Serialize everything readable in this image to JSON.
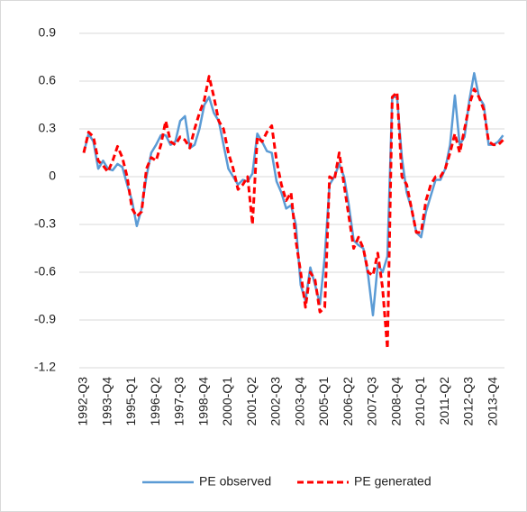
{
  "chart_data": {
    "type": "line",
    "categories": [
      "1992-Q3",
      null,
      null,
      null,
      null,
      "1993-Q4",
      null,
      null,
      null,
      null,
      "1995-Q1",
      null,
      null,
      null,
      null,
      "1996-Q2",
      null,
      null,
      null,
      null,
      "1997-Q3",
      null,
      null,
      null,
      null,
      "1998-Q4",
      null,
      null,
      null,
      null,
      "2000-Q1",
      null,
      null,
      null,
      null,
      "2001-Q2",
      null,
      null,
      null,
      null,
      "2002-Q3",
      null,
      null,
      null,
      null,
      "2003-Q4",
      null,
      null,
      null,
      null,
      "2005-Q1",
      null,
      null,
      null,
      null,
      "2006-Q2",
      null,
      null,
      null,
      null,
      "2007-Q3",
      null,
      null,
      null,
      null,
      "2008-Q4",
      null,
      null,
      null,
      null,
      "2010-Q1",
      null,
      null,
      null,
      null,
      "2011-Q2",
      null,
      null,
      null,
      null,
      "2012-Q3",
      null,
      null,
      null,
      null,
      "2013-Q4",
      null,
      null
    ],
    "series": [
      {
        "name": "PE observed",
        "color": "#5b9bd5",
        "line_style": "solid",
        "values": [
          0.15,
          0.27,
          0.22,
          0.05,
          0.1,
          0.05,
          0.04,
          0.08,
          0.06,
          -0.05,
          -0.15,
          -0.31,
          -0.2,
          0.0,
          0.15,
          0.2,
          0.26,
          0.26,
          0.2,
          0.22,
          0.35,
          0.38,
          0.18,
          0.2,
          0.3,
          0.45,
          0.5,
          0.4,
          0.35,
          0.2,
          0.05,
          0.0,
          -0.05,
          -0.02,
          -0.03,
          0.02,
          0.27,
          0.22,
          0.16,
          0.15,
          -0.03,
          -0.1,
          -0.2,
          -0.18,
          -0.3,
          -0.68,
          -0.78,
          -0.57,
          -0.68,
          -0.8,
          -0.5,
          -0.05,
          0.0,
          0.08,
          0.0,
          -0.18,
          -0.4,
          -0.43,
          -0.45,
          -0.62,
          -0.87,
          -0.55,
          -0.6,
          -0.5,
          0.5,
          0.5,
          0.12,
          -0.1,
          -0.2,
          -0.35,
          -0.38,
          -0.22,
          -0.12,
          -0.02,
          -0.02,
          0.05,
          0.2,
          0.51,
          0.2,
          0.25,
          0.48,
          0.65,
          0.5,
          0.45,
          0.2,
          0.2,
          0.22,
          0.26
        ]
      },
      {
        "name": "PE generated",
        "color": "#ff0000",
        "line_style": "dashed",
        "values": [
          0.15,
          0.28,
          0.25,
          0.1,
          0.07,
          0.03,
          0.1,
          0.19,
          0.12,
          0.0,
          -0.2,
          -0.25,
          -0.22,
          0.05,
          0.12,
          0.1,
          0.2,
          0.35,
          0.22,
          0.2,
          0.25,
          0.23,
          0.18,
          0.3,
          0.4,
          0.48,
          0.63,
          0.5,
          0.35,
          0.3,
          0.15,
          0.05,
          -0.08,
          -0.05,
          0.0,
          -0.3,
          0.25,
          0.22,
          0.28,
          0.32,
          0.1,
          -0.05,
          -0.15,
          -0.1,
          -0.4,
          -0.6,
          -0.82,
          -0.6,
          -0.65,
          -0.85,
          -0.82,
          0.0,
          -0.02,
          0.15,
          -0.05,
          -0.25,
          -0.45,
          -0.38,
          -0.45,
          -0.6,
          -0.62,
          -0.48,
          -0.7,
          -1.08,
          0.5,
          0.53,
          0.0,
          -0.05,
          -0.2,
          -0.35,
          -0.35,
          -0.15,
          -0.05,
          0.0,
          0.0,
          0.05,
          0.15,
          0.27,
          0.15,
          0.3,
          0.45,
          0.55,
          0.5,
          0.42,
          0.22,
          0.2,
          0.2,
          0.23
        ]
      }
    ],
    "ylim": [
      -1.2,
      0.9
    ],
    "yticks": [
      -1.2,
      -0.9,
      -0.6,
      -0.3,
      0,
      0.3,
      0.6,
      0.9
    ],
    "grid": true,
    "legend": "bottom"
  }
}
